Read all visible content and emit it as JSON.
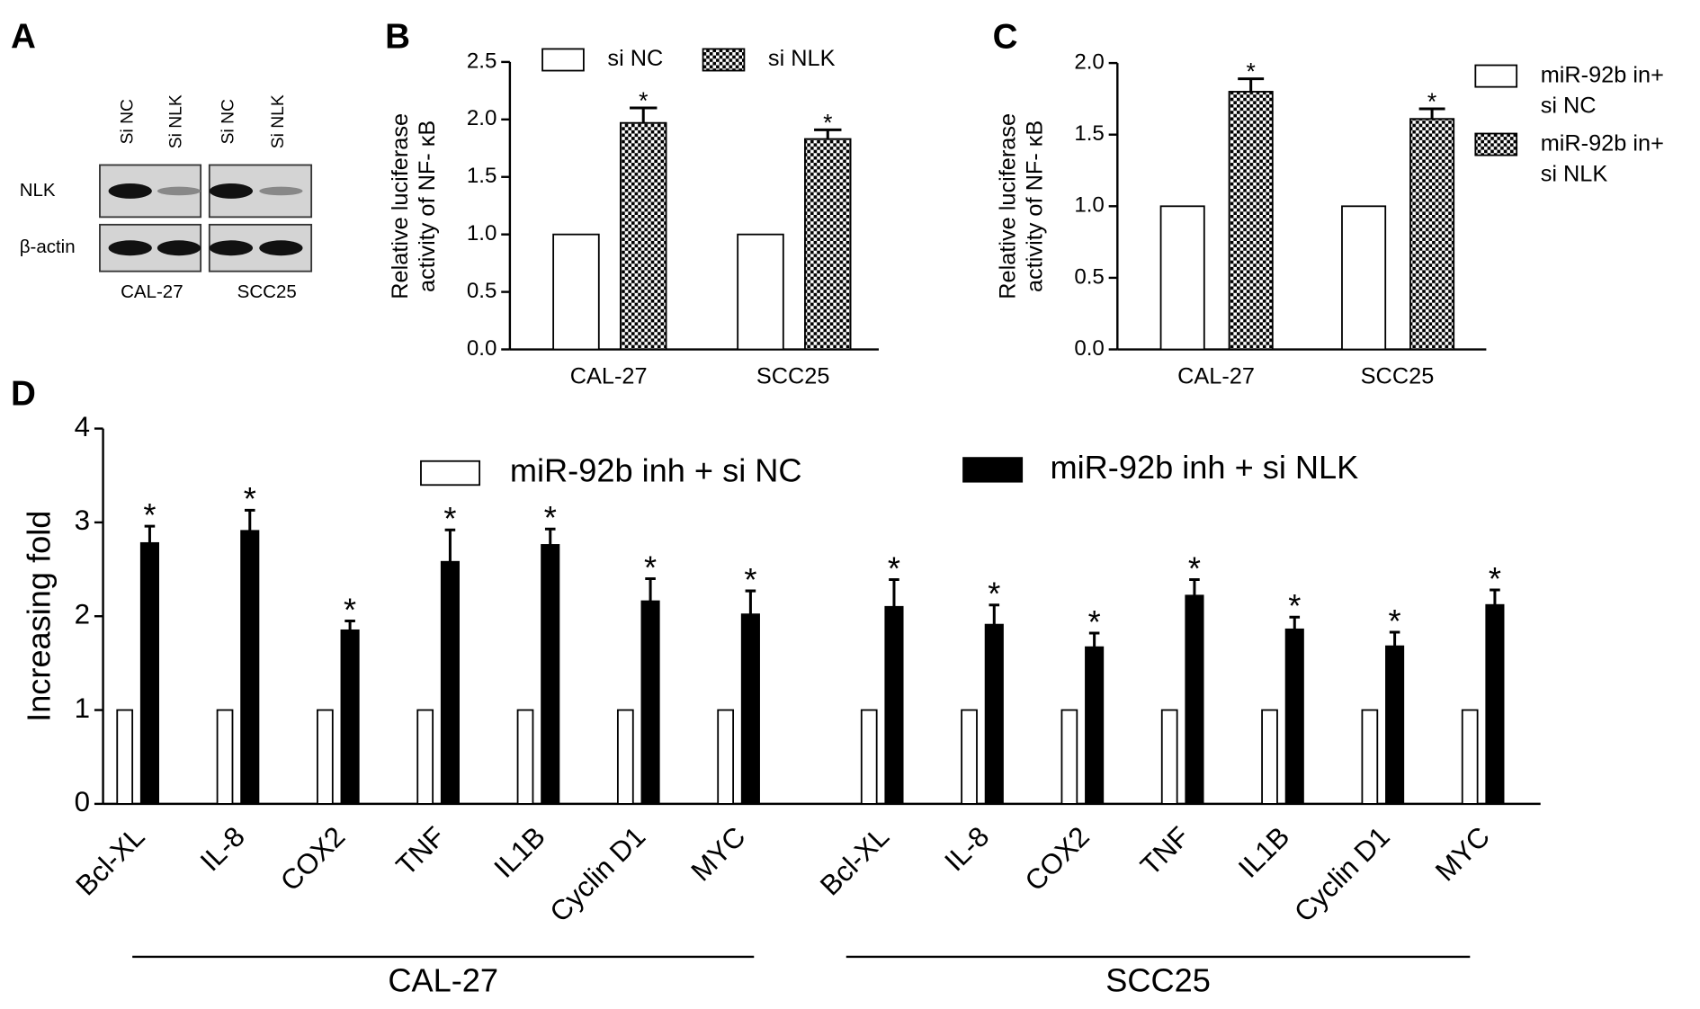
{
  "chart_data": [
    {
      "type": "blot",
      "label": "A",
      "columns": [
        "Si NC",
        "Si NLK",
        "Si NC",
        "Si NLK"
      ],
      "rows": [
        "NLK",
        "β-actin"
      ],
      "groups": [
        "CAL-27",
        "SCC25"
      ]
    },
    {
      "type": "bar",
      "label": "B",
      "ylabel": [
        "Relative luciferase",
        "activity of NF- κB"
      ],
      "categories": [
        "CAL-27",
        "SCC25"
      ],
      "series": [
        {
          "name": "si NC",
          "color": "#ffffff",
          "values": [
            1,
            1
          ]
        },
        {
          "name": "si NLK",
          "color": "#000000",
          "pattern": "checker",
          "values": [
            1.97,
            1.83
          ],
          "errors": [
            0.13,
            0.08
          ]
        }
      ],
      "annotations": [
        "*",
        "*"
      ],
      "ylim": [
        0,
        2.5
      ],
      "yticks": [
        {
          "value": 0,
          "label": "0.0"
        },
        0.5,
        {
          "value": 1,
          "label": "1.0"
        },
        1.5,
        {
          "value": 2,
          "label": "2.0"
        },
        2.5
      ],
      "legend": "top"
    },
    {
      "type": "bar",
      "label": "C",
      "ylabel": [
        "Relative luciferase",
        "activity of NF- κB"
      ],
      "categories": [
        "CAL-27",
        "SCC25"
      ],
      "series": [
        {
          "name": "miR-92b in+ si NC",
          "color": "#ffffff",
          "values": [
            1,
            1
          ]
        },
        {
          "name": "miR-92b in+ si NLK",
          "color": "#000000",
          "pattern": "checker",
          "values": [
            1.8,
            1.61
          ],
          "errors": [
            0.09,
            0.07
          ]
        }
      ],
      "annotations": [
        "*",
        "*"
      ],
      "ylim": [
        0,
        2.0
      ],
      "yticks": [
        {
          "value": 0,
          "label": "0.0"
        },
        0.5,
        {
          "value": 1,
          "label": "1.0"
        },
        1.5,
        {
          "value": 2,
          "label": "2.0"
        }
      ],
      "legend": "right"
    },
    {
      "type": "bar",
      "label": "D",
      "ylabel": "Increasing fold",
      "categories": [
        "Bcl-XL",
        "IL-8",
        "COX2",
        "TNF",
        "IL1B",
        "Cyclin D1",
        "MYC",
        "Bcl-XL",
        "IL-8",
        "COX2",
        "TNF",
        "IL1B",
        "Cyclin D1",
        "MYC"
      ],
      "groups": [
        "CAL-27",
        "SCC25"
      ],
      "series": [
        {
          "name": "miR-92b inh + si NC",
          "color": "#ffffff",
          "values": [
            1,
            1,
            1,
            1,
            1,
            1,
            1,
            1,
            1,
            1,
            1,
            1,
            1,
            1
          ]
        },
        {
          "name": "miR-92b inh + si NLK",
          "color": "#000000",
          "values": [
            2.78,
            2.91,
            1.85,
            2.58,
            2.76,
            2.16,
            2.02,
            2.1,
            1.91,
            1.67,
            2.22,
            1.86,
            1.68,
            2.12
          ],
          "errors": [
            0.18,
            0.22,
            0.1,
            0.34,
            0.17,
            0.24,
            0.25,
            0.29,
            0.21,
            0.15,
            0.17,
            0.13,
            0.15,
            0.16
          ]
        }
      ],
      "annotations": [
        "*",
        "*",
        "*",
        "*",
        "*",
        "*",
        "*",
        "*",
        "*",
        "*",
        "*",
        "*",
        "*",
        "*"
      ],
      "ylim": [
        0,
        4
      ],
      "yticks": [
        0,
        1,
        2,
        3,
        4
      ],
      "legend": "top"
    }
  ]
}
